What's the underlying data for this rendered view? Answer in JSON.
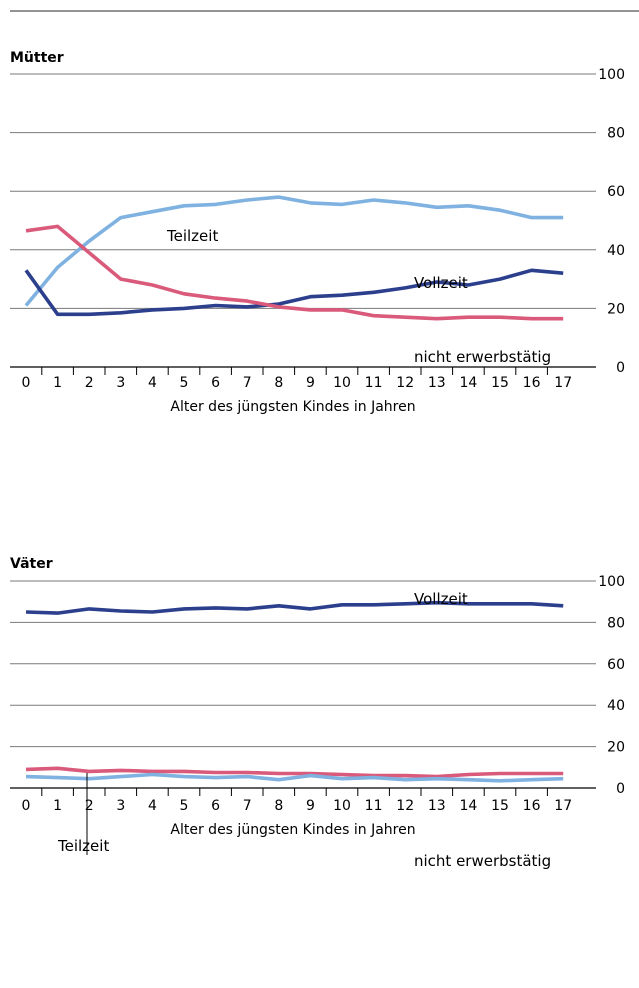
{
  "chart_data": [
    {
      "type": "line",
      "title": "Mütter",
      "xlabel": "Alter des jüngsten Kindes in Jahren",
      "ylabel": "",
      "x": [
        0,
        1,
        2,
        3,
        4,
        5,
        6,
        7,
        8,
        9,
        10,
        11,
        12,
        13,
        14,
        15,
        16,
        17
      ],
      "ylim": [
        0,
        100
      ],
      "yticks": [
        0,
        20,
        40,
        60,
        80,
        100
      ],
      "grid": true,
      "legend": "inline labels",
      "series": [
        {
          "name": "Teilzeit",
          "color": "#7fb2e0",
          "values": [
            21,
            34,
            43,
            51,
            53,
            55,
            55.5,
            57,
            58,
            56,
            55.5,
            57,
            56,
            54.5,
            55,
            53.5,
            51,
            51
          ]
        },
        {
          "name": "Vollzeit",
          "color": "#2b3f8c",
          "values": [
            33,
            18,
            18,
            18.5,
            19.5,
            20,
            21,
            20.5,
            21.5,
            24,
            24.5,
            25.5,
            27,
            29,
            28,
            30,
            33,
            32
          ]
        },
        {
          "name": "nicht erwerbstätig",
          "color": "#d95a7a",
          "values": [
            46.5,
            48,
            39,
            30,
            28,
            25,
            23.5,
            22.5,
            20.5,
            19.5,
            19.5,
            17.5,
            17,
            16.5,
            17,
            17,
            16.5,
            16.5
          ]
        }
      ]
    },
    {
      "type": "line",
      "title": "Väter",
      "xlabel": "Alter des jüngsten Kindes in Jahren",
      "ylabel": "",
      "x": [
        0,
        1,
        2,
        3,
        4,
        5,
        6,
        7,
        8,
        9,
        10,
        11,
        12,
        13,
        14,
        15,
        16,
        17
      ],
      "ylim": [
        0,
        100
      ],
      "yticks": [
        0,
        20,
        40,
        60,
        80,
        100
      ],
      "grid": true,
      "legend": "inline labels",
      "series": [
        {
          "name": "Vollzeit",
          "color": "#2b3f8c",
          "values": [
            85,
            84.5,
            86.5,
            85.5,
            85,
            86.5,
            87,
            86.5,
            88,
            86.5,
            88.5,
            88.5,
            89,
            89.5,
            89,
            89,
            89,
            88
          ]
        },
        {
          "name": "nicht erwerbstätig",
          "color": "#d95a7a",
          "values": [
            9,
            9.5,
            8,
            8.5,
            8,
            8,
            7.5,
            7.5,
            7,
            7,
            6.5,
            6,
            6,
            5.5,
            6.5,
            7,
            7,
            7
          ]
        },
        {
          "name": "Teilzeit",
          "color": "#7fb2e0",
          "values": [
            5.5,
            5,
            4.5,
            5.5,
            6.5,
            5.5,
            5,
            5.5,
            4,
            6,
            4.5,
            5,
            4,
            4.5,
            4,
            3.5,
            4,
            4.5
          ]
        }
      ]
    }
  ]
}
